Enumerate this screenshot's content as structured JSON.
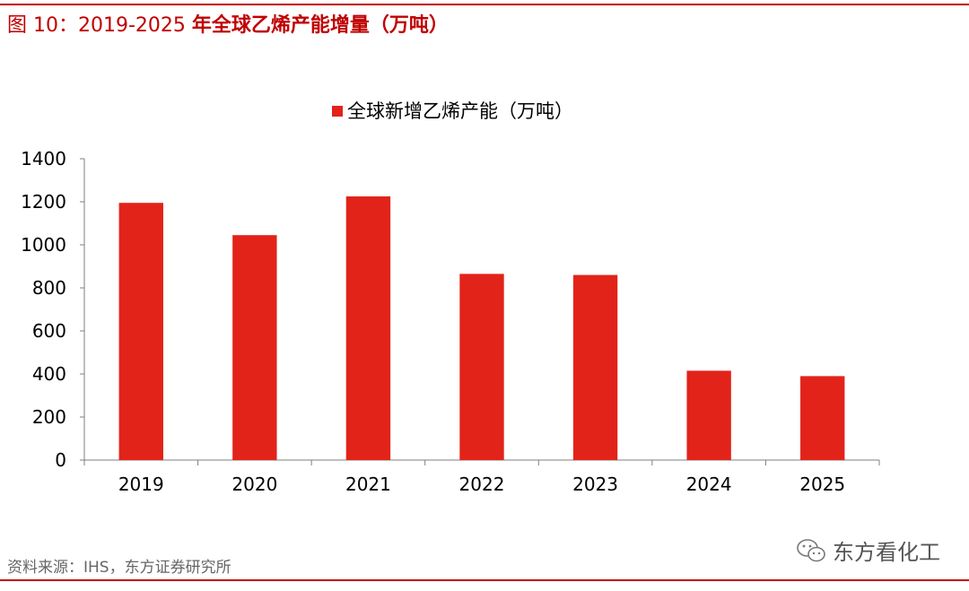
{
  "figure": {
    "label": "图 10：",
    "title_range": "2019-2025 ",
    "title_text": "年全球乙烯产能增量（万吨）"
  },
  "source_text": "资料来源：IHS，东方证券研究所",
  "watermark_text": "东方看化工",
  "colors": {
    "bar": "#e2231a",
    "accent": "#c00000",
    "axis": "#7f7f7f"
  },
  "chart_data": {
    "type": "bar",
    "title": "",
    "xlabel": "",
    "ylabel": "",
    "categories": [
      "2019",
      "2020",
      "2021",
      "2022",
      "2023",
      "2024",
      "2025"
    ],
    "series": [
      {
        "name": "全球新增乙烯产能（万吨）",
        "values": [
          1195,
          1045,
          1225,
          865,
          860,
          415,
          390
        ]
      }
    ],
    "ylim": [
      0,
      1400
    ],
    "yticks": [
      0,
      200,
      400,
      600,
      800,
      1000,
      1200,
      1400
    ],
    "grid": false,
    "legend_position": "top-center"
  }
}
